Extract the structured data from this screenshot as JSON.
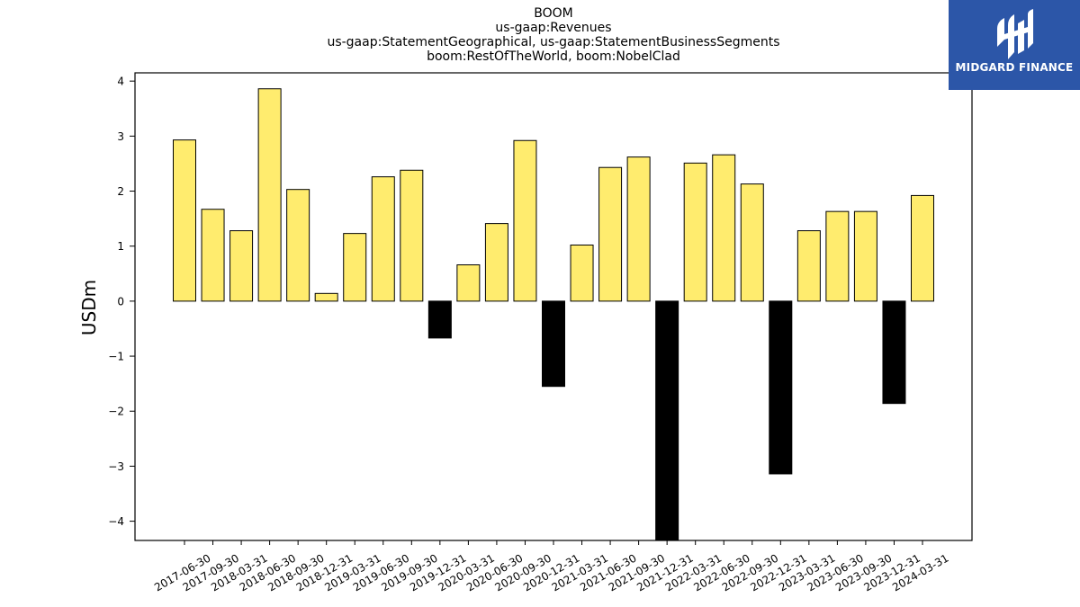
{
  "logo": {
    "name": "MIDGARD FINANCE",
    "background": "#2c56a8"
  },
  "chart_data": {
    "type": "bar",
    "title_lines": [
      "BOOM",
      "us-gaap:Revenues",
      "us-gaap:StatementGeographical, us-gaap:StatementBusinessSegments",
      "boom:RestOfTheWorld, boom:NobelClad"
    ],
    "xlabel": "",
    "ylabel": "USDm",
    "ylim": [
      -4.35,
      4.15
    ],
    "yticks": [
      4,
      3,
      2,
      1,
      0,
      -1,
      -2,
      -3,
      -4
    ],
    "ytick_labels": [
      "4",
      "3",
      "2",
      "1",
      "0",
      "−1",
      "−2",
      "−3",
      "−4"
    ],
    "grid": false,
    "positive_color": "#ffec6e",
    "negative_color": "#000000",
    "categories": [
      "2017-06-30",
      "2017-09-30",
      "2018-03-31",
      "2018-06-30",
      "2018-09-30",
      "2018-12-31",
      "2019-03-31",
      "2019-06-30",
      "2019-09-30",
      "2019-12-31",
      "2020-03-31",
      "2020-06-30",
      "2020-09-30",
      "2020-12-31",
      "2021-03-31",
      "2021-06-30",
      "2021-09-30",
      "2021-12-31",
      "2022-03-31",
      "2022-06-30",
      "2022-09-30",
      "2022-12-31",
      "2023-03-31",
      "2023-06-30",
      "2023-09-30",
      "2023-12-31",
      "2024-03-31"
    ],
    "values": [
      2.93,
      1.67,
      1.28,
      3.86,
      2.03,
      0.14,
      1.23,
      2.26,
      2.38,
      -0.67,
      0.66,
      1.41,
      2.92,
      -1.55,
      1.02,
      2.43,
      2.62,
      -4.35,
      2.51,
      2.66,
      2.13,
      -3.14,
      1.28,
      1.63,
      1.63,
      -1.86,
      1.92
    ]
  }
}
